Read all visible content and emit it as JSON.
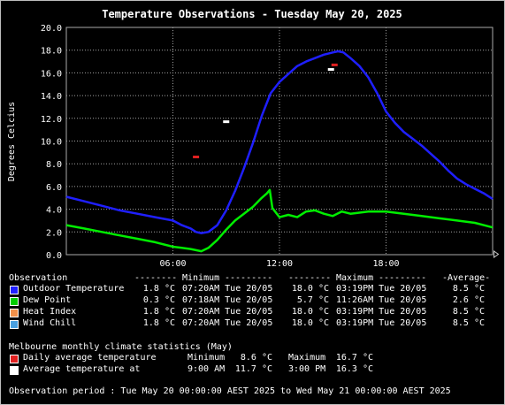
{
  "chart_data": {
    "type": "line",
    "title": "Temperature Observations - Tuesday May 20, 2025",
    "ylabel": "Degrees Celcius",
    "xlabel": "",
    "ylim": [
      0,
      20
    ],
    "xlim": [
      0,
      24
    ],
    "yticks": [
      "0.0",
      "2.0",
      "4.0",
      "6.0",
      "8.0",
      "10.0",
      "12.0",
      "14.0",
      "16.0",
      "18.0",
      "20.0"
    ],
    "xticks": [
      {
        "label": "06:00",
        "x": 6
      },
      {
        "label": "12:00",
        "x": 12
      },
      {
        "label": "18:00",
        "x": 18
      }
    ],
    "grid": true,
    "series": [
      {
        "name": "Outdoor Temperature",
        "color": "#1f1fff",
        "x": [
          0,
          1,
          2,
          3,
          4,
          5,
          6,
          6.5,
          7,
          7.3,
          7.6,
          8,
          8.5,
          9,
          9.5,
          10,
          10.5,
          11,
          11.5,
          12,
          12.5,
          13,
          13.5,
          14,
          14.5,
          15,
          15.3,
          15.6,
          16,
          16.5,
          17,
          17.5,
          18,
          18.5,
          19,
          19.5,
          20,
          20.5,
          21,
          21.5,
          22,
          22.5,
          23,
          23.5,
          24
        ],
        "y": [
          5.1,
          4.7,
          4.3,
          3.9,
          3.6,
          3.3,
          3.0,
          2.6,
          2.3,
          2.0,
          1.9,
          2.0,
          2.6,
          3.9,
          5.6,
          7.6,
          9.8,
          12.2,
          14.2,
          15.2,
          15.9,
          16.6,
          17.0,
          17.3,
          17.6,
          17.8,
          17.9,
          17.8,
          17.3,
          16.6,
          15.6,
          14.2,
          12.6,
          11.6,
          10.8,
          10.2,
          9.6,
          8.9,
          8.2,
          7.4,
          6.7,
          6.2,
          5.8,
          5.4,
          4.9
        ]
      },
      {
        "name": "Dew Point",
        "color": "#00ee00",
        "x": [
          0,
          1,
          2,
          3,
          4,
          5,
          6,
          6.5,
          7,
          7.3,
          7.6,
          8,
          8.5,
          9,
          9.5,
          10,
          10.5,
          11,
          11.3,
          11.45,
          11.6,
          12,
          12.5,
          13,
          13.5,
          14,
          14.5,
          15,
          15.5,
          16,
          17,
          18,
          19,
          20,
          21,
          22,
          23,
          24
        ],
        "y": [
          2.6,
          2.3,
          2.0,
          1.7,
          1.4,
          1.1,
          0.7,
          0.6,
          0.5,
          0.4,
          0.3,
          0.6,
          1.3,
          2.2,
          3.0,
          3.6,
          4.2,
          5.0,
          5.4,
          5.7,
          4.1,
          3.3,
          3.5,
          3.3,
          3.8,
          3.9,
          3.6,
          3.4,
          3.8,
          3.6,
          3.8,
          3.8,
          3.6,
          3.4,
          3.2,
          3.0,
          2.8,
          2.4
        ]
      },
      {
        "name": "Heat Index",
        "color": "#f0a040",
        "x": [],
        "y": []
      },
      {
        "name": "Wind Chill",
        "color": "#40a0ff",
        "x": [],
        "y": []
      }
    ],
    "climate_points": [
      {
        "name": "Daily average temperature",
        "color": "#e02020",
        "points": [
          {
            "x": 7.3,
            "y": 8.6
          },
          {
            "x": 15.1,
            "y": 16.7
          }
        ]
      },
      {
        "name": "Average temperature at",
        "color": "#ffffff",
        "points": [
          {
            "x": 9.0,
            "y": 11.7
          },
          {
            "x": 14.9,
            "y": 16.3
          }
        ]
      }
    ]
  },
  "legend": {
    "header": {
      "observation": "Observation",
      "min_dashes_left": "--------",
      "min_label": "Minimum",
      "min_dashes_right": "---------",
      "max_dashes_left": "--------",
      "max_label": "Maximum",
      "max_dashes_right": "---------",
      "average": "-Average-"
    },
    "rows": [
      {
        "label": "Outdoor Temperature",
        "color": "#1f1fff",
        "min": "1.8 °C",
        "min_time": "07:20AM Tue 20/05",
        "max": "18.0 °C",
        "max_time": "03:19PM Tue 20/05",
        "avg": "8.5 °C"
      },
      {
        "label": "Dew Point",
        "color": "#00cc00",
        "min": "0.3 °C",
        "min_time": "07:18AM Tue 20/05",
        "max": "5.7 °C",
        "max_time": "11:26AM Tue 20/05",
        "avg": "2.6 °C"
      },
      {
        "label": "Heat Index",
        "color": "#f0904a",
        "min": "1.8 °C",
        "min_time": "07:20AM Tue 20/05",
        "max": "18.0 °C",
        "max_time": "03:19PM Tue 20/05",
        "avg": "8.5 °C"
      },
      {
        "label": "Wind Chill",
        "color": "#4aa0e0",
        "min": "1.8 °C",
        "min_time": "07:20AM Tue 20/05",
        "max": "18.0 °C",
        "max_time": "03:19PM Tue 20/05",
        "avg": "8.5 °C"
      }
    ]
  },
  "climate": {
    "heading": "Melbourne monthly climate statistics (May)",
    "rows": [
      {
        "label": "Daily average temperature",
        "color": "#e02020",
        "col1_label": "Minimum",
        "col1_value": "8.6 °C",
        "col2_label": "Maximum",
        "col2_value": "16.7 °C"
      },
      {
        "label": "Average temperature at",
        "color": "#ffffff",
        "col1_label": "9:00 AM",
        "col1_value": "11.7 °C",
        "col2_label": "3:00 PM",
        "col2_value": "16.3 °C"
      }
    ]
  },
  "footer": {
    "period": "Observation period : Tue May 20 00:00:00 AEST 2025 to Wed May 21 00:00:00 AEST 2025"
  }
}
